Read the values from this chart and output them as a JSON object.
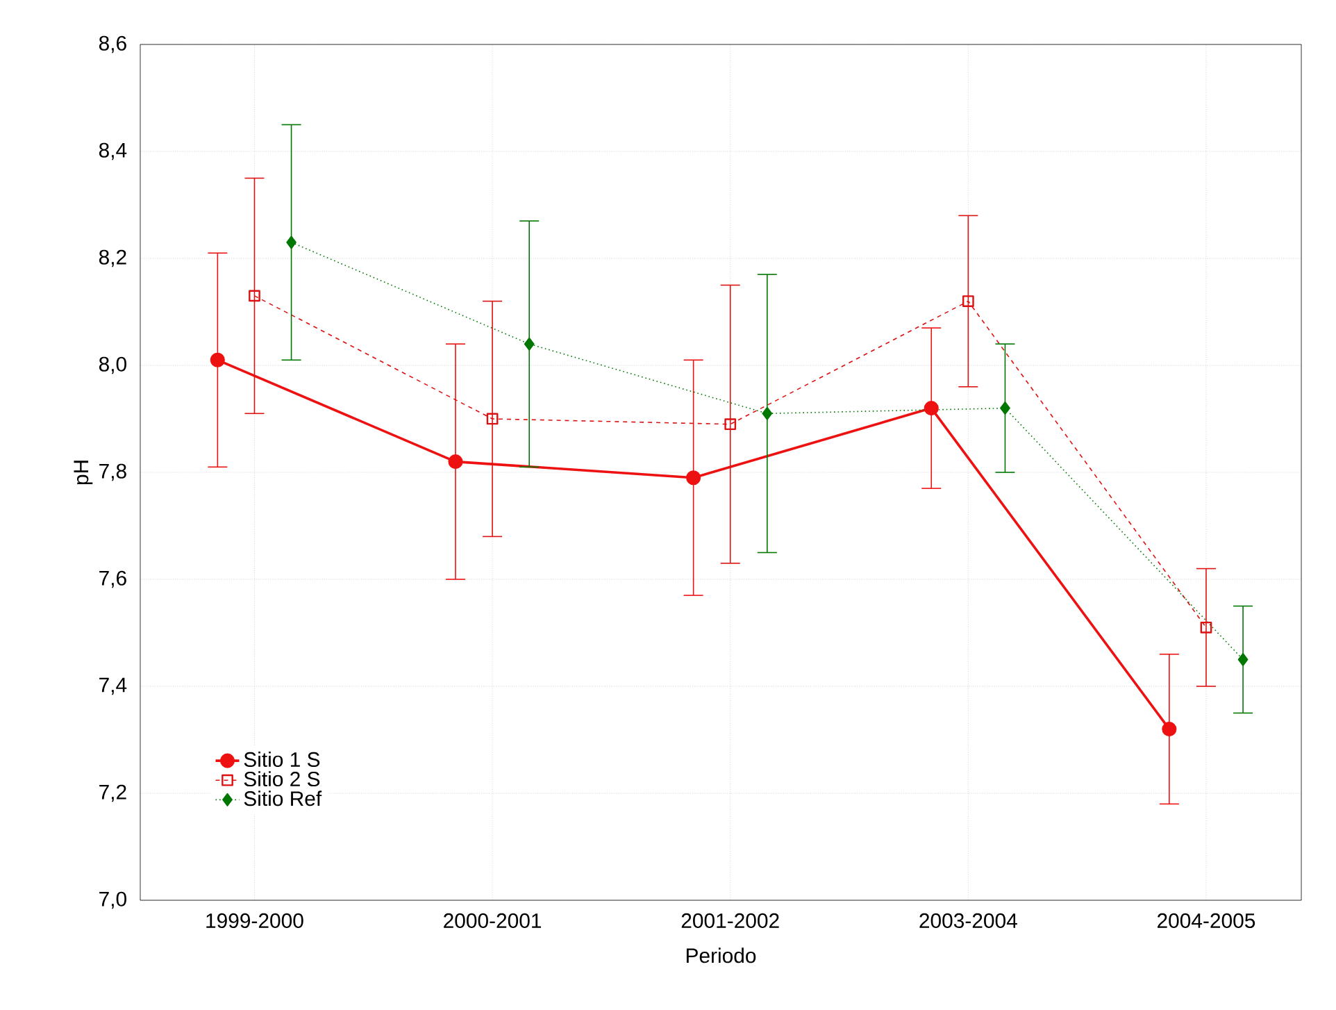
{
  "chart_data": {
    "type": "line",
    "xlabel": "Periodo",
    "ylabel": "pH",
    "categories": [
      "1999-2000",
      "2000-2001",
      "2001-2002",
      "2003-2004",
      "2004-2005"
    ],
    "series": [
      {
        "name": "Sitio 1 S",
        "color": "#ee1111",
        "marker": "circle",
        "line_style": "solid",
        "values": [
          8.01,
          7.82,
          7.79,
          7.92,
          7.32
        ],
        "errors": [
          0.2,
          0.22,
          0.22,
          0.15,
          0.14
        ]
      },
      {
        "name": "Sitio 2 S",
        "color": "#dd1111",
        "marker": "square",
        "line_style": "dashed",
        "values": [
          8.13,
          7.9,
          7.89,
          8.12,
          7.51
        ],
        "errors": [
          0.22,
          0.22,
          0.26,
          0.16,
          0.11
        ]
      },
      {
        "name": "Sitio Ref",
        "color": "#007700",
        "marker": "diamond",
        "line_style": "dotted",
        "values": [
          8.23,
          8.04,
          7.91,
          7.92,
          7.45
        ],
        "errors": [
          0.22,
          0.23,
          0.26,
          0.12,
          0.1
        ]
      }
    ],
    "ylim": [
      7.0,
      8.6
    ],
    "yticks": [
      {
        "value": 7.0,
        "label": "7,0"
      },
      {
        "value": 7.2,
        "label": "7,2"
      },
      {
        "value": 7.4,
        "label": "7,4"
      },
      {
        "value": 7.6,
        "label": "7,6"
      },
      {
        "value": 7.8,
        "label": "7,8"
      },
      {
        "value": 8.0,
        "label": "8,0"
      },
      {
        "value": 8.2,
        "label": "8,2"
      },
      {
        "value": 8.4,
        "label": "8,4"
      },
      {
        "value": 8.6,
        "label": "8,6"
      }
    ],
    "grid": true,
    "legend": "bottom left"
  }
}
